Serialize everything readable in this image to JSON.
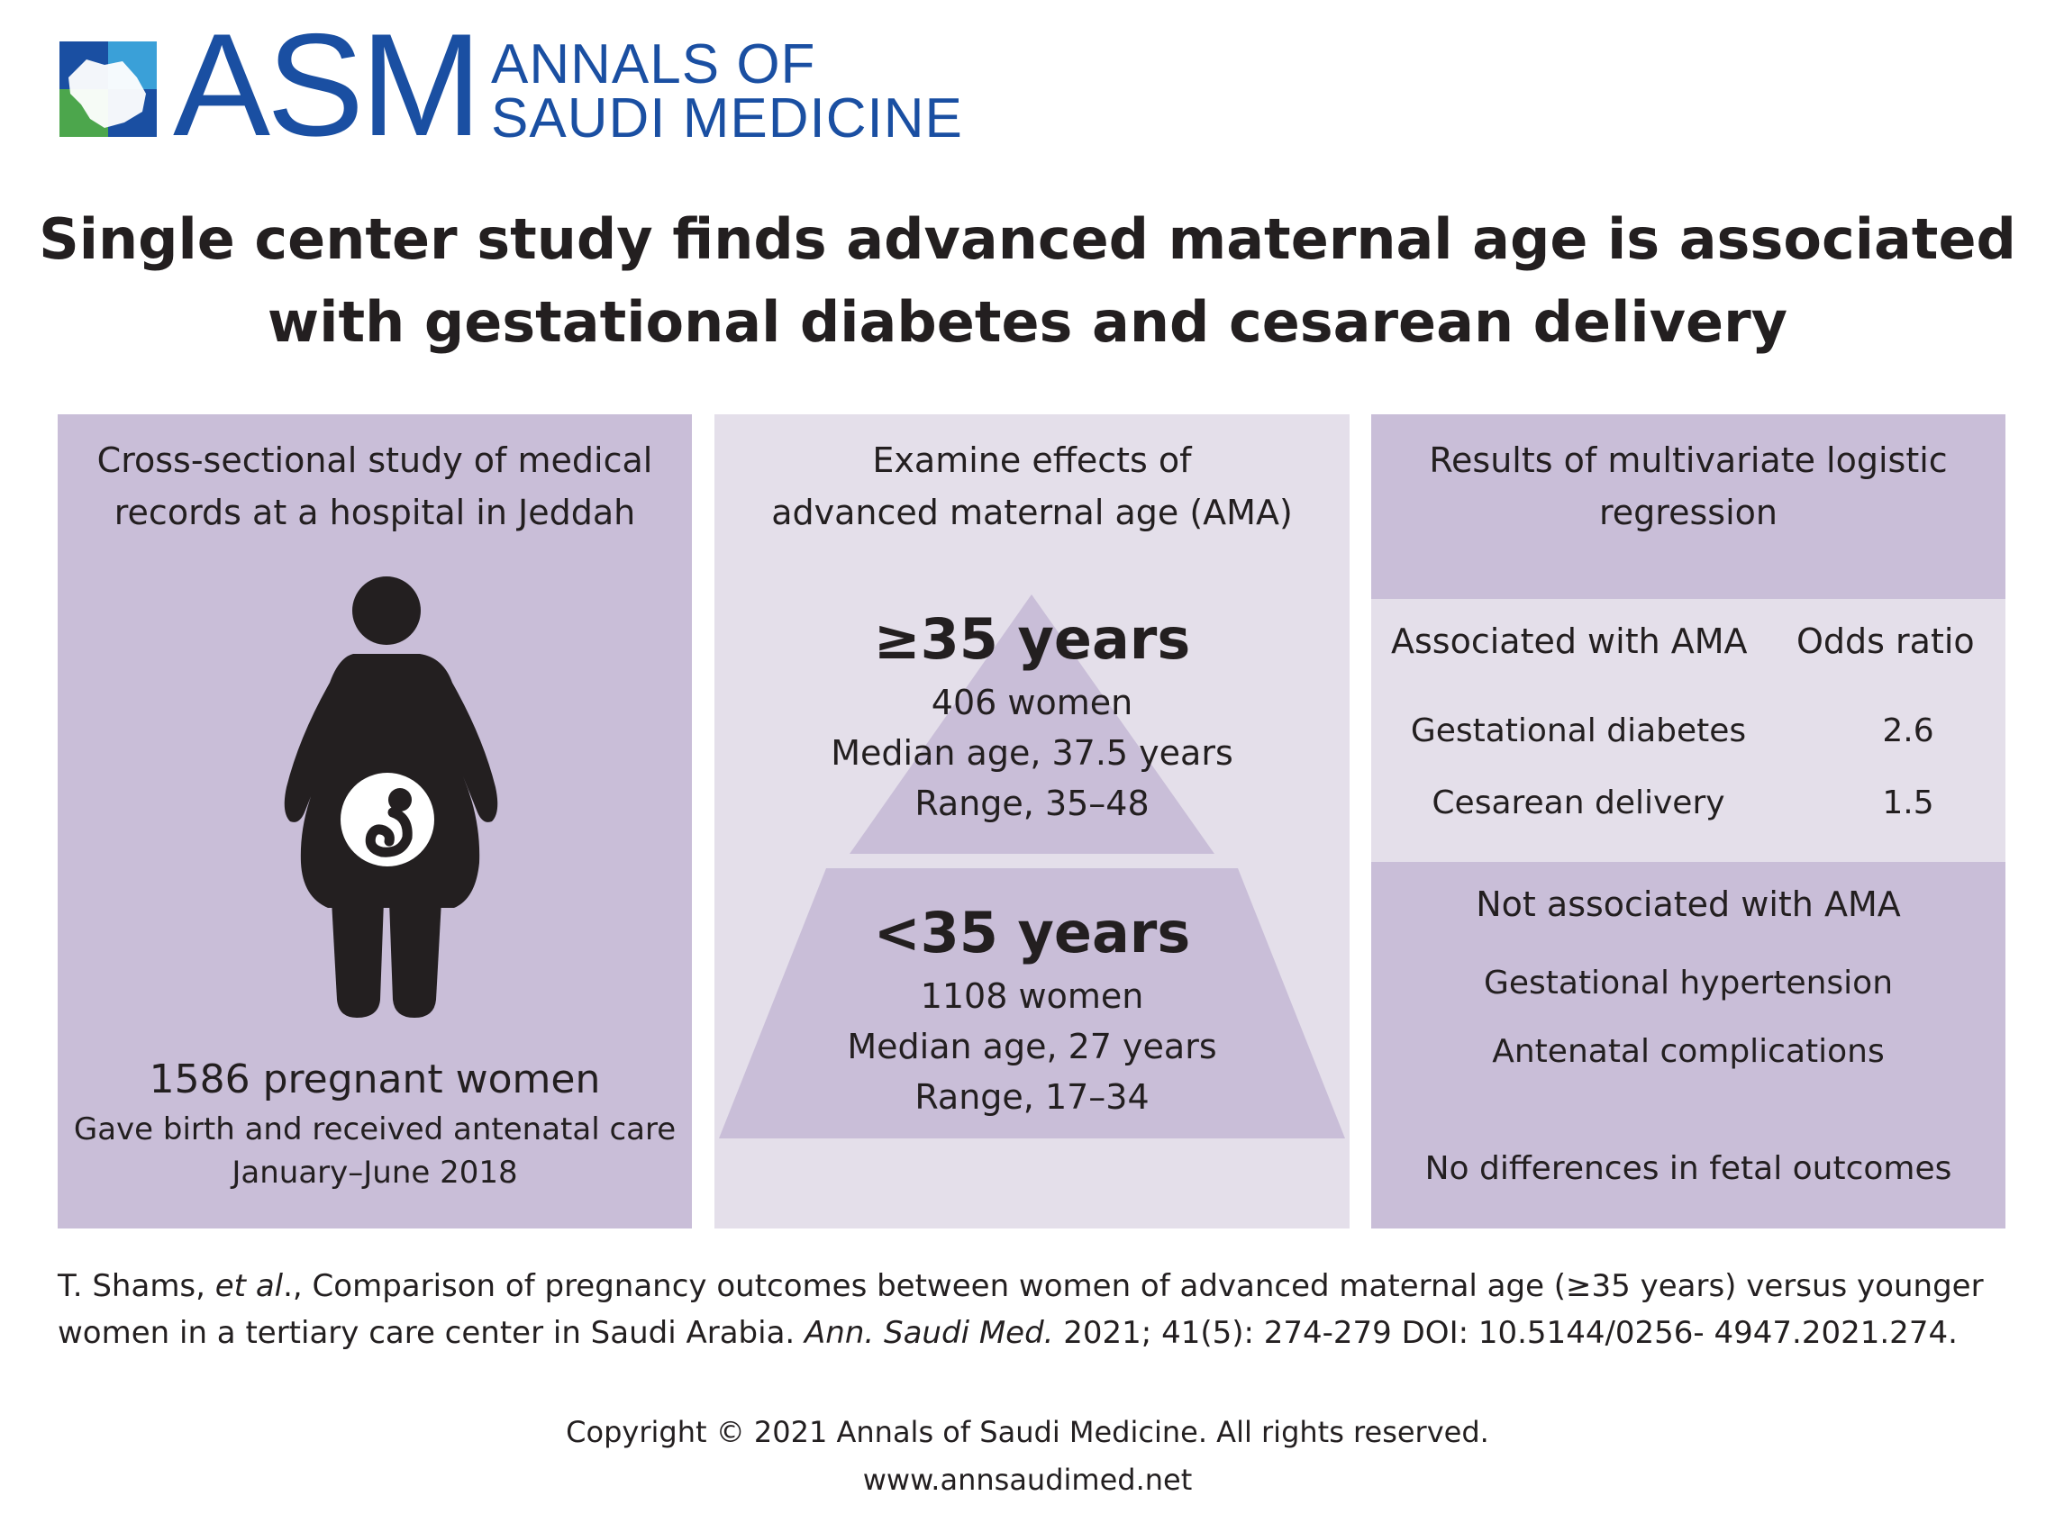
{
  "brand": {
    "abbr": "ASM",
    "name_line1": "ANNALS OF",
    "name_line2": "SAUDI MEDICINE",
    "color_primary": "#1a4fa2",
    "color_green": "#4ca64c"
  },
  "headline": {
    "line1": "Single center study finds advanced maternal age is associated",
    "line2": "with gestational diabetes and cesarean delivery"
  },
  "left_panel": {
    "title_line1": "Cross-sectional study of medical",
    "title_line2": "records at a hospital in Jeddah",
    "icon": "pregnant-woman-icon",
    "count": "1586 pregnant women",
    "desc_line1": "Gave birth and received antenatal care",
    "desc_line2": "January–June 2018"
  },
  "middle_panel": {
    "title_line1": "Examine effects of",
    "title_line2": "advanced maternal age (AMA)",
    "top_tier": {
      "label": "≥35 years",
      "women": "406 women",
      "median": "Median age, 37.5 years",
      "range": "Range, 35–48"
    },
    "bottom_tier": {
      "label": "<35 years",
      "women": "1108 women",
      "median": "Median age, 27 years",
      "range": "Range, 17–34"
    }
  },
  "right_panel": {
    "title_line1": "Results of multivariate logistic",
    "title_line2": "regression",
    "col_associated": "Associated with AMA",
    "col_odds": "Odds ratio",
    "rows": [
      {
        "outcome": "Gestational diabetes",
        "odds": "2.6"
      },
      {
        "outcome": "Cesarean delivery",
        "odds": "1.5"
      }
    ],
    "not_associated_title": "Not associated with AMA",
    "not_associated": [
      "Gestational hypertension",
      "Antenatal complications"
    ],
    "fetal_note": "No differences in fetal outcomes"
  },
  "citation": {
    "authors": "T. Shams, ",
    "etal": "et al",
    "title": "., Comparison of pregnancy outcomes between women of advanced maternal age (≥35 years) versus younger women in a tertiary care center in Saudi Arabia. ",
    "journal": "Ann. Saudi Med.",
    "details": " 2021; 41(5): 274-279 DOI: 10.5144/0256- 4947.2021.274."
  },
  "footer": {
    "copyright": "Copyright © 2021 Annals of Saudi Medicine.  All rights reserved.",
    "website": "www.annsaudimed.net"
  },
  "colors": {
    "panel_dark": "#c9bed8",
    "panel_light": "#e4dfea",
    "text": "#231f20"
  }
}
